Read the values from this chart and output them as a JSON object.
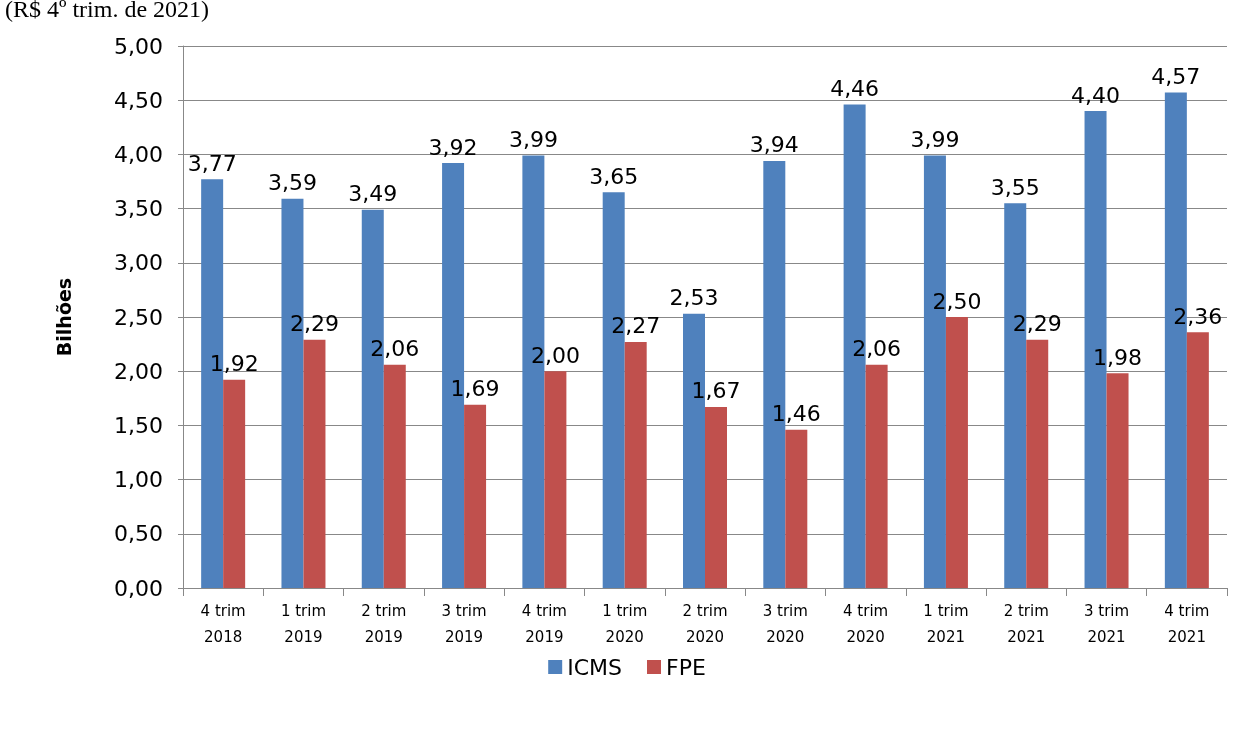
{
  "chart_data": {
    "type": "bar",
    "title": "(R$ 4º trim. de 2021)",
    "ylabel": "Bilhões",
    "categories": [
      "4 trim\n2018",
      "1 trim\n2019",
      "2 trim\n2019",
      "3 trim\n2019",
      "4 trim\n2019",
      "1 trim\n2020",
      "2 trim\n2020",
      "3 trim\n2020",
      "4 trim\n2020",
      "1 trim\n2021",
      "2 trim\n2021",
      "3 trim\n2021",
      "4 trim\n2021"
    ],
    "series": [
      {
        "name": "ICMS",
        "color": "#4f81bd",
        "values": [
          3.77,
          3.59,
          3.49,
          3.92,
          3.99,
          3.65,
          2.53,
          3.94,
          4.46,
          3.99,
          3.55,
          4.4,
          4.57
        ],
        "value_labels": [
          "3,77",
          "3,59",
          "3,49",
          "3,92",
          "3,99",
          "3,65",
          "2,53",
          "3,94",
          "4,46",
          "3,99",
          "3,55",
          "4,40",
          "4,57"
        ]
      },
      {
        "name": "FPE",
        "color": "#c0504d",
        "values": [
          1.92,
          2.29,
          2.06,
          1.69,
          2.0,
          2.27,
          1.67,
          1.46,
          2.06,
          2.5,
          2.29,
          1.98,
          2.36
        ],
        "value_labels": [
          "1,92",
          "2,29",
          "2,06",
          "1,69",
          "2,00",
          "2,27",
          "1,67",
          "1,46",
          "2,06",
          "2,50",
          "2,29",
          "1,98",
          "2,36"
        ]
      }
    ],
    "ylim": [
      0,
      5
    ],
    "yticks": [
      {
        "value": 0,
        "label": "0,00"
      },
      {
        "value": 0.5,
        "label": "0,50"
      },
      {
        "value": 1,
        "label": "1,00"
      },
      {
        "value": 1.5,
        "label": "1,50"
      },
      {
        "value": 2,
        "label": "2,00"
      },
      {
        "value": 2.5,
        "label": "2,50"
      },
      {
        "value": 3,
        "label": "3,00"
      },
      {
        "value": 3.5,
        "label": "3,50"
      },
      {
        "value": 4,
        "label": "4,00"
      },
      {
        "value": 4.5,
        "label": "4,50"
      },
      {
        "value": 5,
        "label": "5,00"
      }
    ],
    "grid": "y",
    "legend": "bottom"
  }
}
